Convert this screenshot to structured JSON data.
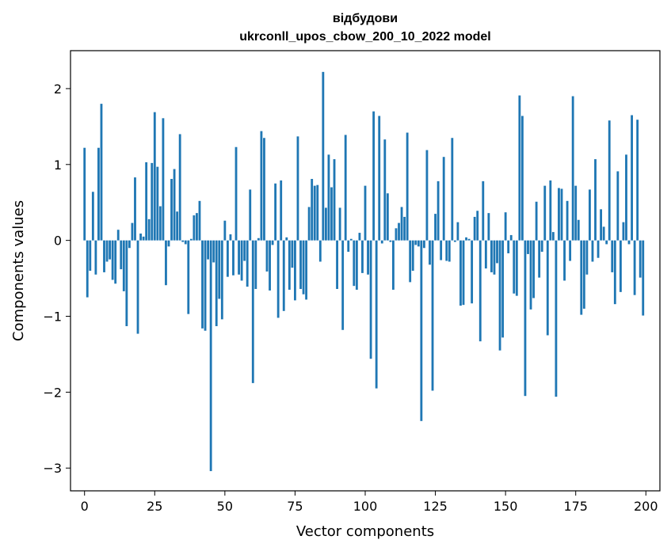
{
  "chart_data": {
    "type": "bar",
    "title": "відбудови",
    "subtitle": "ukrconll_upos_cbow_200_10_2022 model",
    "xlabel": "Vector components",
    "ylabel": "Components values",
    "xlim": [
      -5,
      205
    ],
    "ylim": [
      -3.3,
      2.5
    ],
    "xticks": [
      0,
      25,
      50,
      75,
      100,
      125,
      150,
      175,
      200
    ],
    "yticks": [
      -3,
      -2,
      -1,
      0,
      1,
      2
    ],
    "xtick_labels": [
      "0",
      "25",
      "50",
      "75",
      "100",
      "125",
      "150",
      "175",
      "200"
    ],
    "ytick_labels": [
      "−3",
      "−2",
      "−1",
      "0",
      "1",
      "2"
    ],
    "bar_color": "#1f77b4",
    "grid": false,
    "values": [
      1.22,
      -0.75,
      -0.4,
      0.64,
      -0.45,
      1.22,
      1.8,
      -0.42,
      -0.28,
      -0.25,
      -0.52,
      -0.57,
      0.14,
      -0.38,
      -0.67,
      -1.13,
      -0.1,
      0.23,
      0.83,
      -1.23,
      0.09,
      0.05,
      1.03,
      0.28,
      1.02,
      1.69,
      0.97,
      0.45,
      1.61,
      -0.59,
      -0.08,
      0.81,
      0.94,
      0.38,
      1.4,
      -0.02,
      -0.05,
      -0.97,
      0.02,
      0.33,
      0.36,
      0.52,
      -1.16,
      -1.19,
      -0.25,
      -3.04,
      -0.29,
      -1.13,
      -0.77,
      -1.04,
      0.26,
      -0.48,
      0.08,
      -0.46,
      1.23,
      -0.45,
      -0.53,
      -0.27,
      -0.61,
      0.67,
      -1.88,
      -0.64,
      0.03,
      1.44,
      1.35,
      -0.41,
      -0.66,
      -0.06,
      0.75,
      -1.02,
      0.79,
      -0.93,
      0.04,
      -0.65,
      -0.36,
      -0.79,
      1.37,
      -0.64,
      -0.71,
      -0.78,
      0.44,
      0.81,
      0.72,
      0.73,
      -0.28,
      2.22,
      0.43,
      1.13,
      0.7,
      1.07,
      -0.64,
      0.43,
      -1.18,
      1.39,
      -0.15,
      0.02,
      -0.6,
      -0.65,
      0.1,
      -0.43,
      0.72,
      -0.45,
      -1.56,
      1.7,
      -1.95,
      1.64,
      -0.04,
      1.33,
      0.62,
      -0.02,
      -0.65,
      0.16,
      0.23,
      0.44,
      0.31,
      1.42,
      -0.55,
      -0.4,
      -0.06,
      -0.08,
      -2.38,
      -0.1,
      1.19,
      -0.32,
      -1.98,
      0.35,
      0.78,
      -0.26,
      1.1,
      -0.27,
      -0.28,
      1.35,
      -0.02,
      0.24,
      -0.86,
      -0.85,
      0.04,
      0.02,
      -0.83,
      0.31,
      0.39,
      -1.33,
      0.78,
      -0.37,
      0.36,
      -0.42,
      -0.45,
      -0.3,
      -1.45,
      -1.28,
      0.37,
      -0.17,
      0.07,
      -0.7,
      -0.73,
      1.91,
      1.64,
      -2.05,
      -0.18,
      -0.91,
      -0.76,
      0.51,
      -0.49,
      -0.15,
      0.72,
      -1.25,
      0.79,
      0.11,
      -2.06,
      0.69,
      0.68,
      -0.53,
      0.52,
      -0.27,
      1.9,
      0.72,
      0.27,
      -0.98,
      -0.9,
      -0.45,
      0.67,
      -0.28,
      1.07,
      -0.23,
      0.41,
      0.18,
      -0.05,
      1.58,
      -0.42,
      -0.84,
      0.91,
      -0.68,
      0.24,
      1.13,
      -0.05,
      1.65,
      -0.72,
      1.59,
      -0.49,
      -0.99
    ]
  }
}
